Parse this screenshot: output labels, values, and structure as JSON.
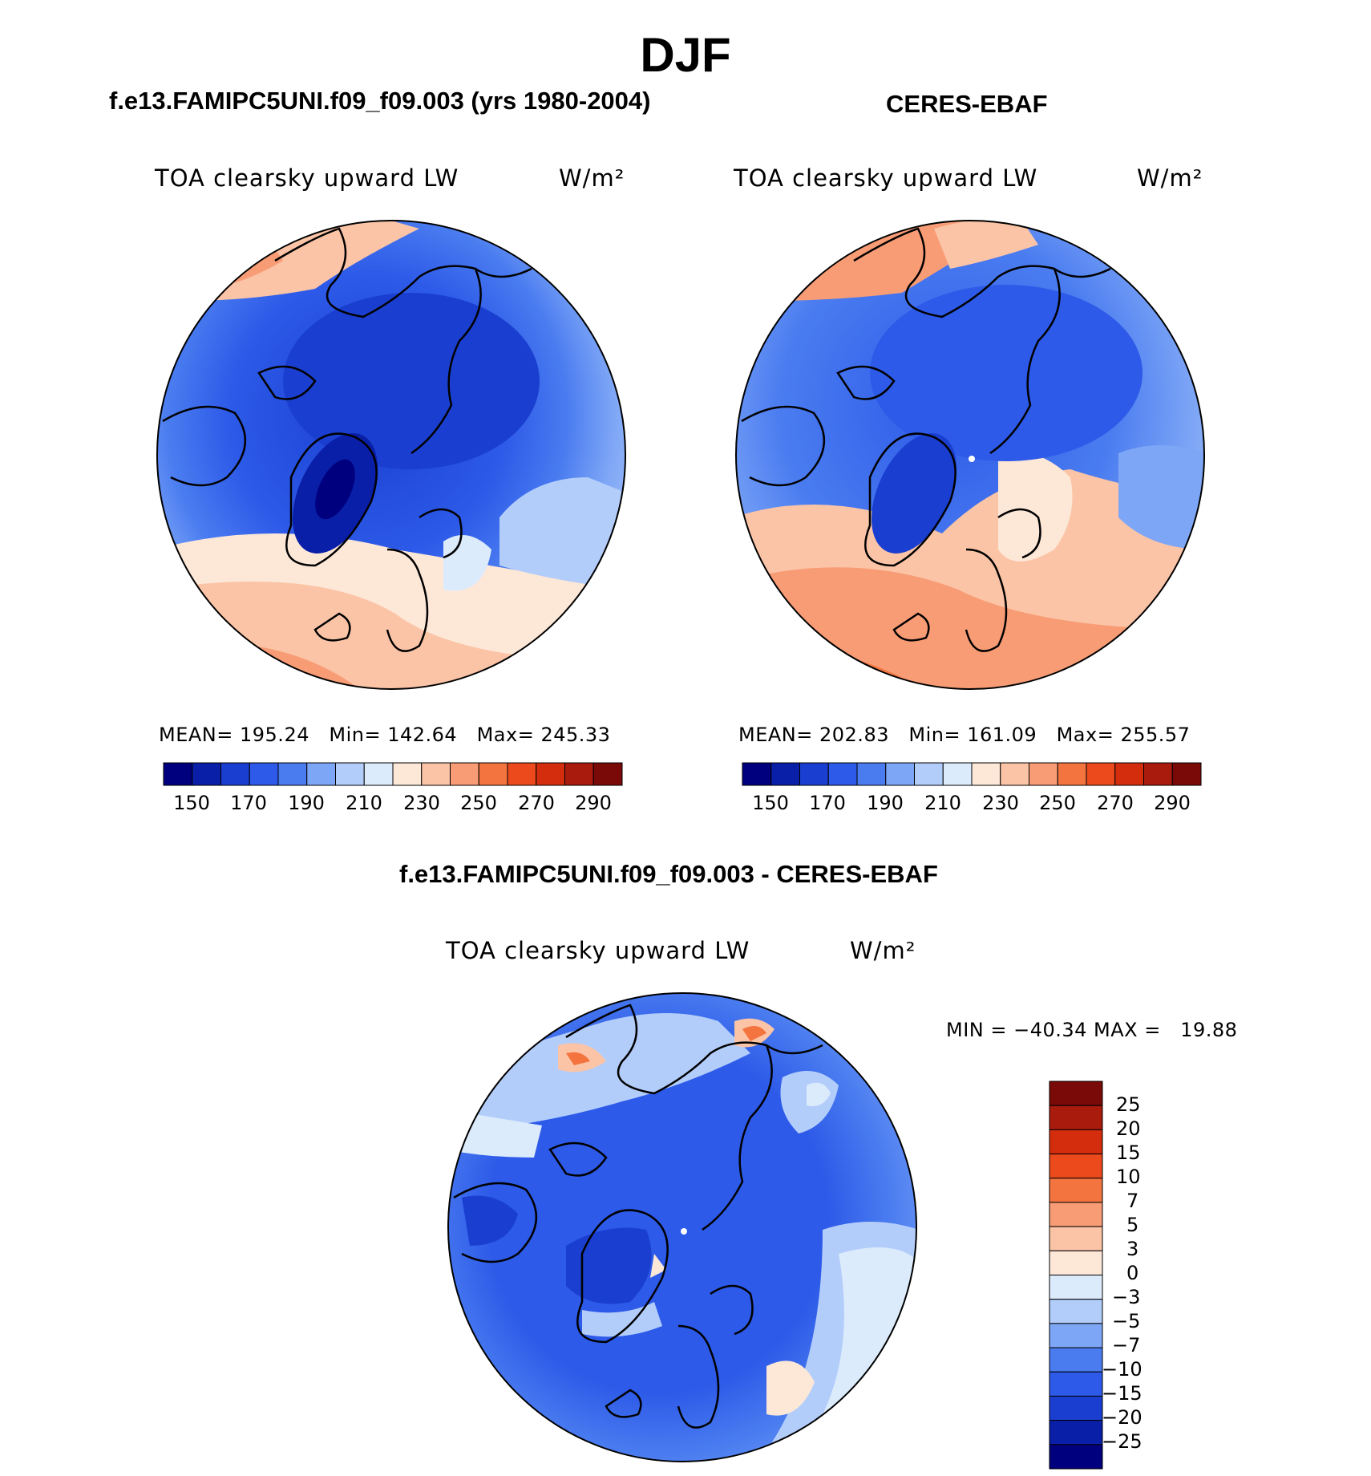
{
  "figure_title": "DJF",
  "panels": [
    {
      "title": "f.e13.FAMIPC5UNI.f09_f09.003 (yrs 1980-2004)",
      "variable": "TOA clearsky upward LW",
      "units": "W/m²",
      "stats": {
        "mean_label": "MEAN=",
        "mean": "195.24",
        "min_label": "Min=",
        "min": "142.64",
        "max_label": "Max=",
        "max": "245.33"
      },
      "colorbar_ticks": [
        "150",
        "170",
        "190",
        "210",
        "230",
        "250",
        "270",
        "290"
      ]
    },
    {
      "title": "CERES-EBAF",
      "variable": "TOA clearsky upward LW",
      "units": "W/m²",
      "stats": {
        "mean_label": "MEAN=",
        "mean": "202.83",
        "min_label": "Min=",
        "min": "161.09",
        "max_label": "Max=",
        "max": "255.57"
      },
      "colorbar_ticks": [
        "150",
        "170",
        "190",
        "210",
        "230",
        "250",
        "270",
        "290"
      ]
    },
    {
      "title": "f.e13.FAMIPC5UNI.f09_f09.003 - CERES-EBAF",
      "variable": "TOA clearsky upward LW",
      "units": "W/m²",
      "minmax": "MIN = −40.34 MAX =   19.88",
      "colorbar_ticks": [
        "25",
        "20",
        "15",
        "10",
        "7",
        "5",
        "3",
        "0",
        "−3",
        "−5",
        "−7",
        "−10",
        "−15",
        "−20",
        "−25"
      ]
    }
  ],
  "colors": {
    "abs_scale": [
      "#00007f",
      "#0a1fa8",
      "#1a3fd0",
      "#2d5ae8",
      "#4a7cf0",
      "#7ea6f6",
      "#b3cdfb",
      "#dcebfc",
      "#fde7d7",
      "#fbc4a6",
      "#f89c75",
      "#f4743f",
      "#ec4a1c",
      "#d42d0d",
      "#a91b0c",
      "#7a0a07"
    ],
    "diff_scale": [
      "#7a0a07",
      "#a91b0c",
      "#d42d0d",
      "#ec4a1c",
      "#f4743f",
      "#f89c75",
      "#fbc4a6",
      "#fde7d7",
      "#dcebfc",
      "#b3cdfb",
      "#7ea6f6",
      "#4a7cf0",
      "#2d5ae8",
      "#1a3fd0",
      "#0a1fa8",
      "#00007f"
    ]
  }
}
